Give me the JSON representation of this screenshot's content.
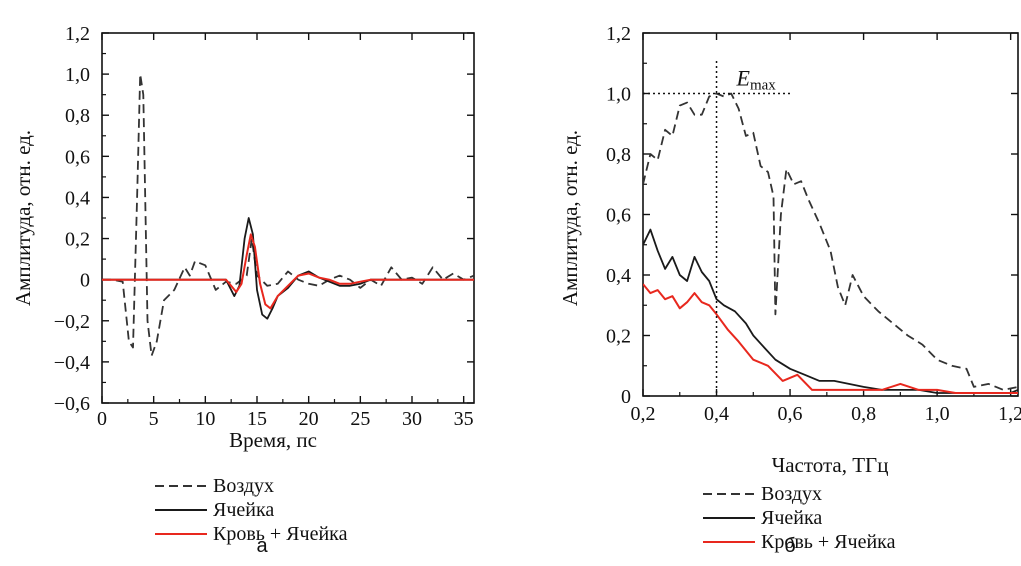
{
  "colors": {
    "air": "#333333",
    "cell": "#1a1a1a",
    "blood": "#e8281e"
  },
  "legend_items": [
    {
      "label": "Воздух",
      "style": "dashed",
      "color": "#333333"
    },
    {
      "label": "Ячейка",
      "style": "solid",
      "color": "#1a1a1a"
    },
    {
      "label": "Кровь + Ячейка",
      "style": "solid",
      "color": "#e8281e"
    }
  ],
  "chart_data": [
    {
      "type": "line",
      "panel_label": "а",
      "xlabel": "Время, пс",
      "ylabel": "Амплитуда, отн. ед.",
      "xlim": [
        0,
        36
      ],
      "ylim": [
        -0.6,
        1.2
      ],
      "x_ticks": [
        "0",
        "5",
        "10",
        "15",
        "20",
        "25",
        "30",
        "35"
      ],
      "y_ticks": [
        "−0,6",
        "−0,4",
        "−0,2",
        "0",
        "0,2",
        "0,4",
        "0,6",
        "0,8",
        "1,0",
        "1,2"
      ],
      "grid": false,
      "legend": "below",
      "series": [
        {
          "name": "Воздух",
          "style": "dashed",
          "x": [
            0,
            1,
            2,
            2.6,
            3.0,
            3.4,
            3.7,
            4.0,
            4.4,
            4.8,
            5.3,
            6,
            7,
            8,
            8.5,
            9,
            10,
            11,
            12,
            13,
            14,
            14.5,
            15,
            16,
            17,
            18,
            19,
            20,
            21,
            22,
            23,
            24,
            25,
            26,
            27,
            28,
            29,
            30,
            31,
            32,
            33,
            34,
            35,
            36
          ],
          "y": [
            0,
            0,
            -0.01,
            -0.3,
            -0.33,
            0.4,
            1.0,
            0.9,
            -0.2,
            -0.37,
            -0.3,
            -0.1,
            -0.05,
            0.06,
            0.02,
            0.09,
            0.07,
            -0.05,
            -0.01,
            -0.02,
            0.02,
            0.2,
            0.02,
            -0.03,
            -0.02,
            0.04,
            0,
            -0.02,
            -0.03,
            0,
            0.02,
            0,
            -0.04,
            0,
            -0.03,
            0.06,
            0,
            0.01,
            -0.02,
            0.06,
            0,
            0.03,
            0,
            0.02
          ]
        },
        {
          "name": "Ячейка",
          "style": "solid",
          "x": [
            0,
            2,
            4,
            6,
            8,
            10,
            12,
            12.8,
            13.3,
            13.8,
            14.2,
            14.6,
            15.0,
            15.5,
            16.0,
            16.5,
            17,
            18,
            19,
            20,
            21,
            22,
            23,
            24,
            25,
            26,
            28,
            30,
            32,
            34,
            36
          ],
          "y": [
            0,
            0,
            0,
            0,
            0,
            0,
            0,
            -0.08,
            -0.03,
            0.2,
            0.3,
            0.22,
            -0.05,
            -0.17,
            -0.19,
            -0.14,
            -0.08,
            -0.04,
            0.02,
            0.04,
            0.01,
            -0.01,
            -0.03,
            -0.03,
            -0.02,
            0,
            0,
            0,
            0,
            0,
            0
          ]
        },
        {
          "name": "Кровь + Ячейка",
          "style": "solid",
          "x": [
            0,
            2,
            4,
            6,
            8,
            10,
            12,
            13,
            13.5,
            14,
            14.4,
            14.8,
            15.3,
            15.8,
            16.3,
            17,
            18,
            19,
            20,
            21,
            22,
            23,
            24,
            25,
            26,
            28,
            30,
            32,
            34,
            36
          ],
          "y": [
            0,
            0,
            0,
            0,
            0,
            0,
            0,
            -0.06,
            -0.02,
            0.12,
            0.22,
            0.16,
            -0.02,
            -0.12,
            -0.14,
            -0.08,
            -0.03,
            0.02,
            0.03,
            0.01,
            0,
            -0.02,
            -0.02,
            -0.01,
            0,
            0,
            0,
            0,
            0,
            0
          ]
        }
      ]
    },
    {
      "type": "line",
      "panel_label": "б",
      "xlabel": "Частота, ТГц",
      "ylabel": "Амплитуда, отн. ед.",
      "xlim": [
        0.2,
        1.22
      ],
      "ylim": [
        0,
        1.2
      ],
      "x_ticks": [
        "0,2",
        "0,4",
        "0,6",
        "0,8",
        "1,0",
        "1,2"
      ],
      "y_ticks": [
        "0",
        "0,2",
        "0,4",
        "0,6",
        "0,8",
        "1,0",
        "1,2"
      ],
      "grid": false,
      "legend": "below",
      "annotation": {
        "label": "E",
        "subscript": "max",
        "x": 0.4,
        "y": 1.0
      },
      "series": [
        {
          "name": "Воздух",
          "style": "dashed",
          "x": [
            0.2,
            0.22,
            0.24,
            0.26,
            0.28,
            0.3,
            0.32,
            0.34,
            0.36,
            0.38,
            0.4,
            0.42,
            0.44,
            0.46,
            0.48,
            0.5,
            0.52,
            0.54,
            0.555,
            0.56,
            0.575,
            0.59,
            0.61,
            0.63,
            0.65,
            0.68,
            0.71,
            0.73,
            0.75,
            0.77,
            0.8,
            0.84,
            0.88,
            0.92,
            0.96,
            1.0,
            1.04,
            1.08,
            1.1,
            1.14,
            1.18,
            1.22
          ],
          "y": [
            0.7,
            0.8,
            0.78,
            0.88,
            0.86,
            0.96,
            0.97,
            0.93,
            0.93,
            0.99,
            1.0,
            0.99,
            1.0,
            0.95,
            0.86,
            0.87,
            0.76,
            0.74,
            0.66,
            0.27,
            0.6,
            0.75,
            0.7,
            0.71,
            0.65,
            0.57,
            0.48,
            0.36,
            0.3,
            0.4,
            0.33,
            0.28,
            0.24,
            0.2,
            0.17,
            0.12,
            0.1,
            0.09,
            0.03,
            0.04,
            0.02,
            0.03
          ]
        },
        {
          "name": "Ячейка",
          "style": "solid",
          "x": [
            0.2,
            0.22,
            0.24,
            0.26,
            0.28,
            0.3,
            0.32,
            0.34,
            0.36,
            0.38,
            0.4,
            0.42,
            0.45,
            0.48,
            0.5,
            0.53,
            0.56,
            0.6,
            0.64,
            0.68,
            0.72,
            0.76,
            0.8,
            0.85,
            0.9,
            0.95,
            1.0,
            1.05,
            1.1,
            1.15,
            1.2,
            1.22
          ],
          "y": [
            0.5,
            0.55,
            0.48,
            0.42,
            0.46,
            0.4,
            0.38,
            0.46,
            0.41,
            0.38,
            0.32,
            0.3,
            0.28,
            0.24,
            0.2,
            0.16,
            0.12,
            0.09,
            0.07,
            0.05,
            0.05,
            0.04,
            0.03,
            0.02,
            0.02,
            0.02,
            0.01,
            0.01,
            0.01,
            0.01,
            0.01,
            0.02
          ]
        },
        {
          "name": "Кровь + Ячейка",
          "style": "solid",
          "x": [
            0.2,
            0.22,
            0.24,
            0.26,
            0.28,
            0.3,
            0.32,
            0.34,
            0.36,
            0.38,
            0.4,
            0.43,
            0.46,
            0.5,
            0.54,
            0.58,
            0.62,
            0.66,
            0.7,
            0.75,
            0.8,
            0.85,
            0.9,
            0.95,
            1.0,
            1.05,
            1.1,
            1.15,
            1.2,
            1.22
          ],
          "y": [
            0.37,
            0.34,
            0.35,
            0.32,
            0.33,
            0.29,
            0.31,
            0.34,
            0.31,
            0.3,
            0.27,
            0.22,
            0.18,
            0.12,
            0.1,
            0.05,
            0.07,
            0.02,
            0.02,
            0.02,
            0.02,
            0.02,
            0.04,
            0.02,
            0.02,
            0.01,
            0.01,
            0.01,
            0.01,
            0.01
          ]
        }
      ]
    }
  ]
}
